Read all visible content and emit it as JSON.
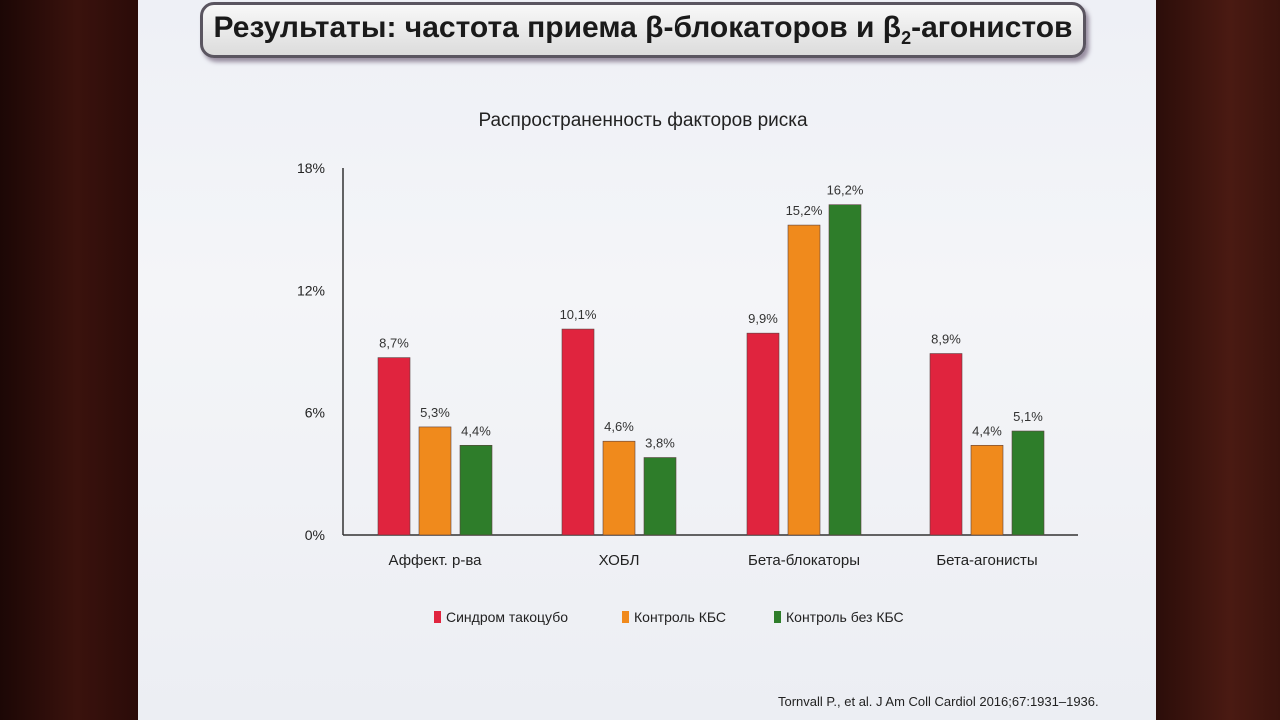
{
  "slide": {
    "title_main": "Результаты: частота приема β-блокаторов и β",
    "title_sub": "2",
    "title_end": "-агонистов",
    "citation": "Tornvall P., et al. J Am Coll Cardiol 2016;67:1931–1936."
  },
  "chart_data": {
    "type": "bar",
    "title": "Распространенность факторов риска",
    "categories": [
      "Аффект. р-ва",
      "ХОБЛ",
      "Бета-блокаторы",
      "Бета-агонисты"
    ],
    "series": [
      {
        "name": "Синдром такоцубо",
        "values": [
          8.7,
          10.1,
          9.9,
          8.9
        ],
        "labels": [
          "8,7%",
          "10,1%",
          "9,9%",
          "8,9%"
        ],
        "color": "#e0243e"
      },
      {
        "name": "Контроль КБС",
        "values": [
          5.3,
          4.6,
          15.2,
          4.4
        ],
        "labels": [
          "5,3%",
          "4,6%",
          "15,2%",
          "4,4%"
        ],
        "color": "#f08a1c"
      },
      {
        "name": "Контроль без КБС",
        "values": [
          4.4,
          3.8,
          16.2,
          5.1
        ],
        "labels": [
          "4,4%",
          "3,8%",
          "16,2%",
          "5,1%"
        ],
        "color": "#2e7d2a"
      }
    ],
    "ylim": [
      0,
      18
    ],
    "yticks": [
      0,
      6,
      12,
      18
    ],
    "ytick_labels": [
      "0%",
      "6%",
      "12%",
      "18%"
    ],
    "legend_position": "bottom",
    "grid": false
  }
}
